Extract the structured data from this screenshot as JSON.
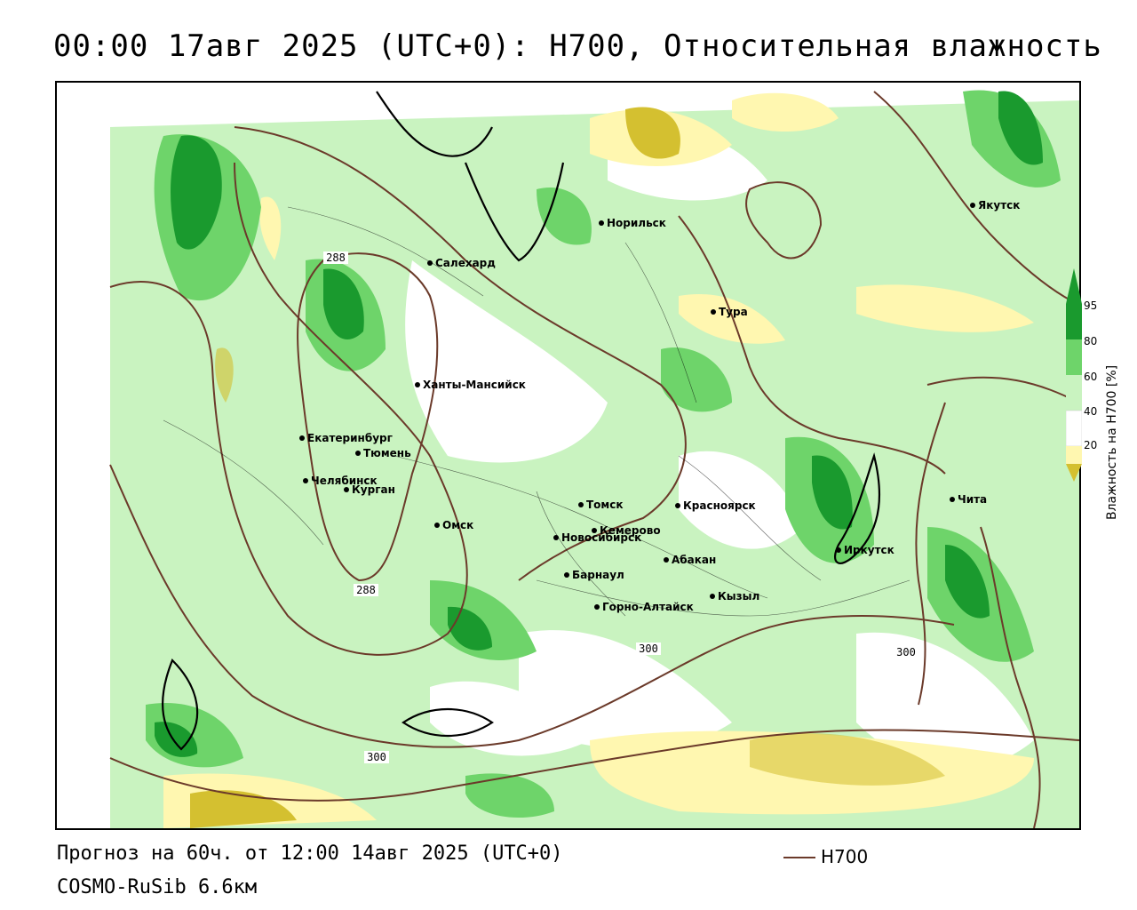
{
  "title": "00:00 17авг 2025 (UTC+0): H700, Относительная влажность",
  "footer": {
    "forecast": "Прогноз на 60ч. от 12:00 14авг 2025 (UTC+0)",
    "model": "COSMO-RuSib 6.6км"
  },
  "legend": {
    "line_label": "H700",
    "line_color": "#6b3a2a"
  },
  "colorbar": {
    "title": "Влажность на H700 [%]",
    "ticks": [
      "95",
      "80",
      "60",
      "40",
      "20"
    ],
    "colors": {
      "very_dry": "#d4c030",
      "dry": "#fff7b0",
      "neutral": "#ffffff",
      "moist": "#c9f3c0",
      "wet": "#6ed46a",
      "very_wet": "#1a9a2e",
      "saturated": "#0a7a22"
    }
  },
  "contour_labels": [
    "288",
    "288",
    "300",
    "300",
    "300"
  ],
  "cities": [
    {
      "name": "Якутск"
    },
    {
      "name": "Норильск"
    },
    {
      "name": "Салехард"
    },
    {
      "name": "Тура"
    },
    {
      "name": "Ханты-Мансийск"
    },
    {
      "name": "Екатеринбург"
    },
    {
      "name": "Тюмень"
    },
    {
      "name": "Челябинск"
    },
    {
      "name": "Курган"
    },
    {
      "name": "Омск"
    },
    {
      "name": "Томск"
    },
    {
      "name": "Новосибирск"
    },
    {
      "name": "Кемерово"
    },
    {
      "name": "Красноярск"
    },
    {
      "name": "Абакан"
    },
    {
      "name": "Барнаул"
    },
    {
      "name": "Горно-Алтайск"
    },
    {
      "name": "Кызыл"
    },
    {
      "name": "Иркутск"
    },
    {
      "name": "Чита"
    }
  ]
}
